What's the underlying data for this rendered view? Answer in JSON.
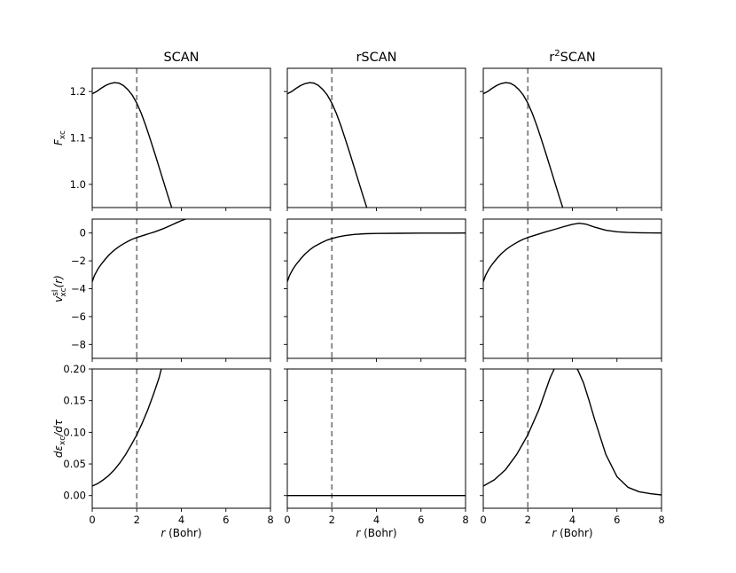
{
  "chart_data": {
    "type": "line",
    "x_axis": {
      "label_prefix": "r",
      "label_suffix": " (Bohr)",
      "xlim": [
        0,
        8
      ],
      "ticks": [
        0,
        2,
        4,
        6,
        8
      ],
      "tick_labels": [
        "0",
        "2",
        "4",
        "6",
        "8"
      ]
    },
    "reference_line": {
      "x": 2,
      "style": "dashed",
      "color": "#808080"
    },
    "columns": [
      {
        "title_parts": [
          "SCAN"
        ]
      },
      {
        "title_parts": [
          "rSCAN"
        ]
      },
      {
        "title_parts": [
          "r",
          "2",
          "SCAN"
        ]
      }
    ],
    "rows": [
      {
        "ylabel_parts": [
          "F",
          "xc"
        ],
        "ylim": [
          0.95,
          1.25
        ],
        "yticks": [
          1.0,
          1.1,
          1.2
        ],
        "ytick_labels": [
          "1.0",
          "1.1",
          "1.2"
        ]
      },
      {
        "ylabel_parts": [
          "v",
          "xc",
          "sl",
          "(r)"
        ],
        "ylim": [
          -9.0,
          1.0
        ],
        "yticks": [
          -8,
          -6,
          -4,
          -2,
          0
        ],
        "ytick_labels": [
          "−8",
          "−6",
          "−4",
          "−2",
          "0"
        ]
      },
      {
        "ylabel_parts": [
          "d",
          "ε",
          "xc",
          "/d",
          "τ"
        ],
        "ylim": [
          -0.02,
          0.2
        ],
        "yticks": [
          0.0,
          0.05,
          0.1,
          0.15,
          0.2
        ],
        "ytick_labels": [
          "0.00",
          "0.05",
          "0.10",
          "0.15",
          "0.20"
        ]
      }
    ],
    "series": [
      {
        "row": 0,
        "col": 0,
        "x": [
          0,
          0.2,
          0.4,
          0.6,
          0.8,
          1.0,
          1.2,
          1.4,
          1.6,
          1.8,
          2.0,
          2.2,
          2.4,
          2.6,
          2.8,
          3.0,
          3.2,
          3.4,
          3.6
        ],
        "y": [
          1.195,
          1.2,
          1.207,
          1.213,
          1.217,
          1.219,
          1.218,
          1.213,
          1.204,
          1.192,
          1.175,
          1.153,
          1.127,
          1.098,
          1.068,
          1.037,
          1.006,
          0.975,
          0.945
        ]
      },
      {
        "row": 0,
        "col": 1,
        "x": [
          0,
          0.2,
          0.4,
          0.6,
          0.8,
          1.0,
          1.2,
          1.4,
          1.6,
          1.8,
          2.0,
          2.2,
          2.4,
          2.6,
          2.8,
          3.0,
          3.2,
          3.4,
          3.6
        ],
        "y": [
          1.195,
          1.2,
          1.207,
          1.213,
          1.217,
          1.219,
          1.218,
          1.213,
          1.204,
          1.192,
          1.175,
          1.153,
          1.127,
          1.098,
          1.068,
          1.037,
          1.006,
          0.975,
          0.945
        ]
      },
      {
        "row": 0,
        "col": 2,
        "x": [
          0,
          0.2,
          0.4,
          0.6,
          0.8,
          1.0,
          1.2,
          1.4,
          1.6,
          1.8,
          2.0,
          2.2,
          2.4,
          2.6,
          2.8,
          3.0,
          3.2,
          3.4,
          3.6
        ],
        "y": [
          1.195,
          1.2,
          1.207,
          1.213,
          1.217,
          1.219,
          1.218,
          1.213,
          1.204,
          1.192,
          1.175,
          1.153,
          1.127,
          1.098,
          1.068,
          1.037,
          1.006,
          0.975,
          0.945
        ]
      },
      {
        "row": 1,
        "col": 0,
        "x": [
          0,
          0.1,
          0.25,
          0.4,
          0.6,
          0.8,
          1.0,
          1.2,
          1.4,
          1.6,
          1.8,
          2.0,
          2.2,
          2.4,
          2.6,
          2.8,
          3.0,
          3.2,
          3.4,
          3.6,
          3.8,
          4.0,
          4.2
        ],
        "y": [
          -3.5,
          -3.05,
          -2.6,
          -2.25,
          -1.85,
          -1.5,
          -1.22,
          -0.98,
          -0.78,
          -0.6,
          -0.44,
          -0.32,
          -0.22,
          -0.12,
          -0.02,
          0.08,
          0.2,
          0.32,
          0.46,
          0.6,
          0.75,
          0.89,
          1.0
        ]
      },
      {
        "row": 1,
        "col": 1,
        "x": [
          0,
          0.1,
          0.25,
          0.4,
          0.6,
          0.8,
          1.0,
          1.2,
          1.5,
          1.8,
          2.0,
          2.3,
          2.6,
          3.0,
          3.5,
          4.0,
          5.0,
          6.0,
          7.0,
          8.0
        ],
        "y": [
          -3.5,
          -3.05,
          -2.6,
          -2.25,
          -1.85,
          -1.5,
          -1.22,
          -0.98,
          -0.72,
          -0.5,
          -0.4,
          -0.27,
          -0.18,
          -0.1,
          -0.05,
          -0.03,
          -0.02,
          -0.01,
          -0.01,
          0.0
        ]
      },
      {
        "row": 1,
        "col": 2,
        "x": [
          0,
          0.1,
          0.25,
          0.4,
          0.6,
          0.8,
          1.0,
          1.2,
          1.4,
          1.6,
          1.8,
          2.0,
          2.4,
          2.8,
          3.2,
          3.6,
          4.0,
          4.3,
          4.6,
          5.0,
          5.5,
          6.0,
          6.5,
          7.0,
          7.5,
          8.0
        ],
        "y": [
          -3.5,
          -3.05,
          -2.6,
          -2.25,
          -1.85,
          -1.5,
          -1.22,
          -0.98,
          -0.78,
          -0.6,
          -0.44,
          -0.32,
          -0.12,
          0.08,
          0.26,
          0.45,
          0.62,
          0.7,
          0.64,
          0.42,
          0.2,
          0.09,
          0.04,
          0.02,
          0.01,
          0.0
        ]
      },
      {
        "row": 2,
        "col": 0,
        "x": [
          0,
          0.25,
          0.5,
          0.75,
          1.0,
          1.25,
          1.5,
          1.75,
          2.0,
          2.25,
          2.5,
          2.75,
          3.0,
          3.1
        ],
        "y": [
          0.015,
          0.019,
          0.025,
          0.032,
          0.041,
          0.052,
          0.065,
          0.08,
          0.096,
          0.115,
          0.136,
          0.16,
          0.186,
          0.2
        ]
      },
      {
        "row": 2,
        "col": 1,
        "x": [
          0,
          8
        ],
        "y": [
          0.0,
          0.0
        ]
      },
      {
        "row": 2,
        "col": 2,
        "x": [
          0,
          0.5,
          1.0,
          1.5,
          2.0,
          2.5,
          3.0,
          3.25,
          3.5,
          3.75,
          4.0,
          4.25,
          4.5,
          4.75,
          5.0,
          5.5,
          6.0,
          6.5,
          7.0,
          7.5,
          8.0
        ],
        "y": [
          0.015,
          0.025,
          0.041,
          0.065,
          0.096,
          0.136,
          0.186,
          0.205,
          0.215,
          0.215,
          0.21,
          0.198,
          0.178,
          0.15,
          0.12,
          0.065,
          0.03,
          0.013,
          0.006,
          0.003,
          0.001
        ]
      }
    ]
  }
}
